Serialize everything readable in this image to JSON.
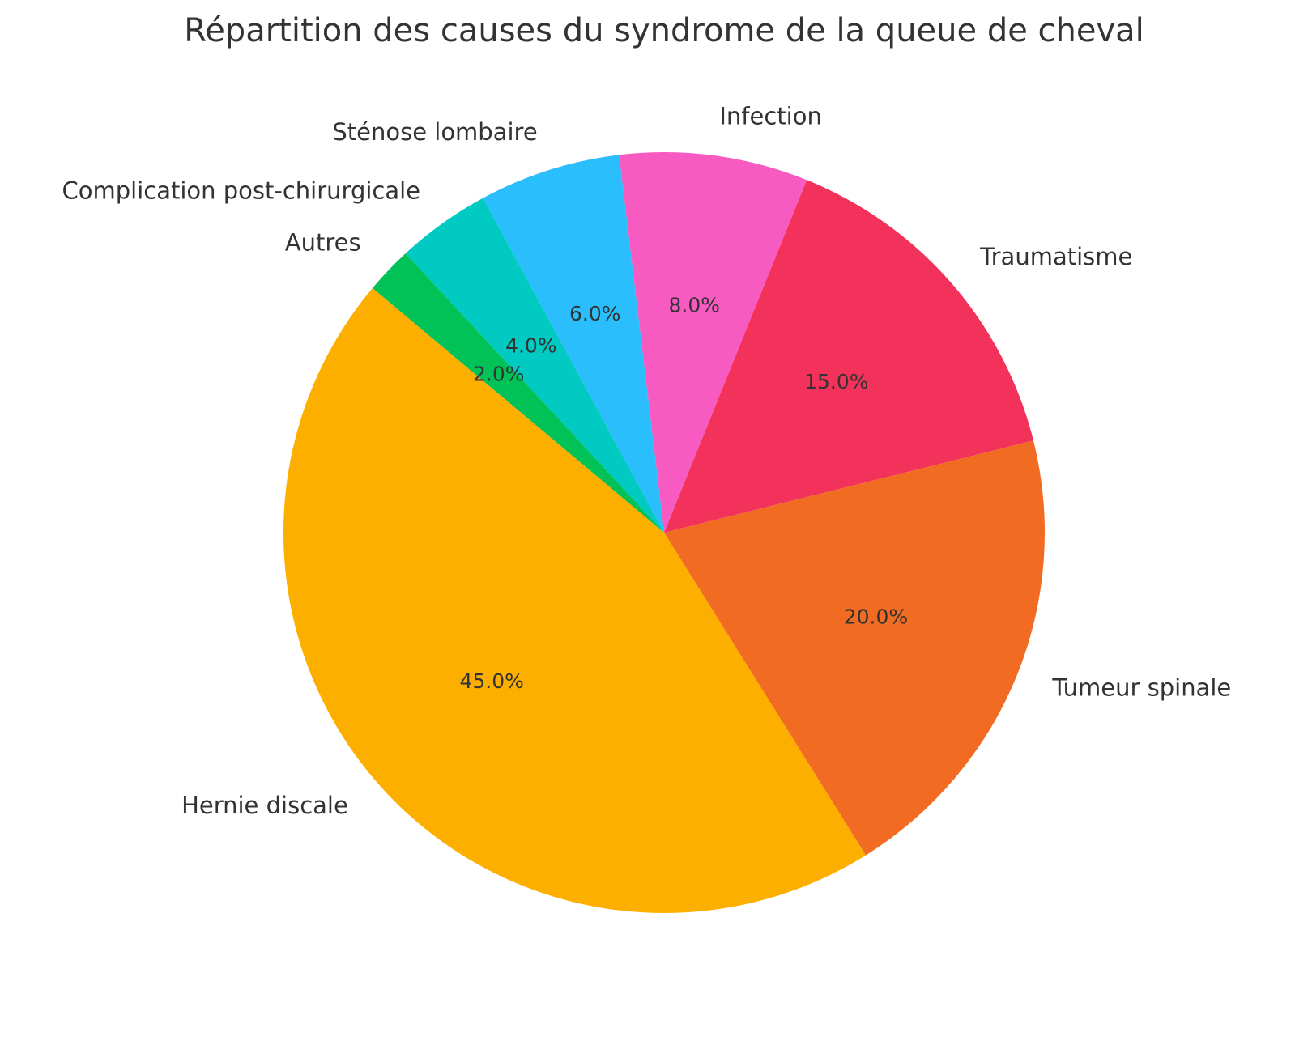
{
  "chart_data": {
    "type": "pie",
    "title": "Répartition des causes du syndrome de la queue de cheval",
    "categories": [
      "Hernie discale",
      "Tumeur spinale",
      "Traumatisme",
      "Infection",
      "Sténose lombaire",
      "Complication post-chirurgicale",
      "Autres"
    ],
    "values": [
      45,
      20,
      15,
      8,
      6,
      4,
      2
    ],
    "value_labels": [
      "45.0%",
      "20.0%",
      "15.0%",
      "8.0%",
      "6.0%",
      "4.0%",
      "2.0%"
    ],
    "colors": [
      "#fdaf00",
      "#f26b23",
      "#f2325a",
      "#f75ac0",
      "#2abffc",
      "#00cac1",
      "#00c257"
    ],
    "start_angle": 140,
    "counterclockwise": true
  }
}
